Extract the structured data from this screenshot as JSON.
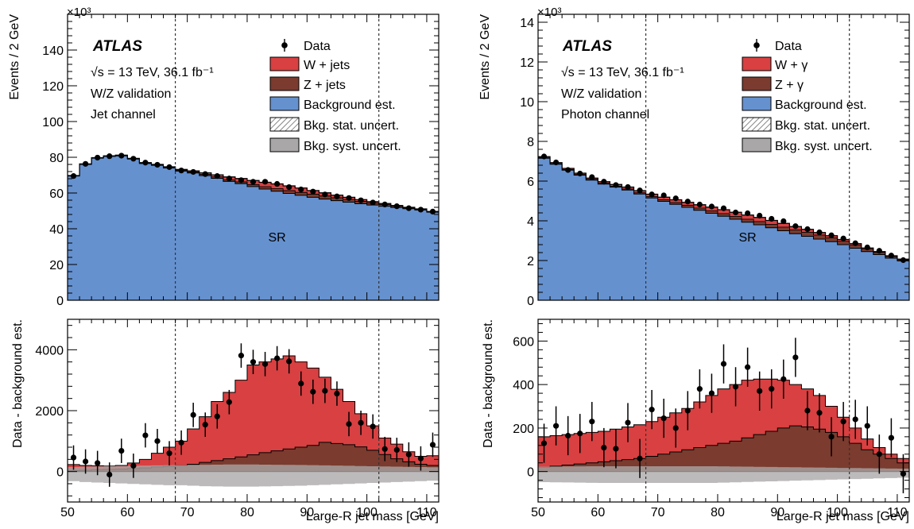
{
  "colors": {
    "data": "#000000",
    "wjets": "#d94041",
    "zjets": "#7b3b2e",
    "background": "#6591cf",
    "stat_uncert": "hatched",
    "syst_uncert": "#a9a7a7"
  },
  "panels": [
    {
      "atlas_label": "ATLAS",
      "info_lines": [
        "√s = 13 TeV,  36.1 fb⁻¹",
        "W/Z validation",
        "Jet channel"
      ],
      "exponent_label": "×10³",
      "legend": [
        "Data",
        "W + jets",
        "Z + jets",
        "Background est.",
        "Bkg. stat. uncert.",
        "Bkg. syst. uncert."
      ],
      "sr_label": "SR"
    },
    {
      "atlas_label": "ATLAS",
      "info_lines": [
        "√s = 13 TeV,  36.1 fb⁻¹",
        "W/Z validation",
        "Photon channel"
      ],
      "exponent_label": "×10³",
      "legend": [
        "Data",
        "W + γ",
        "Z + γ",
        "Background est.",
        "Bkg. stat. uncert.",
        "Bkg. syst. uncert."
      ],
      "sr_label": "SR"
    }
  ],
  "chart_data": [
    {
      "type": "area",
      "panel": "left-top",
      "ylabel": "Events / 2 GeV",
      "xlim": [
        50,
        112
      ],
      "ylim": [
        0,
        160
      ],
      "xticks": [
        "50",
        "60",
        "70",
        "80",
        "90",
        "100",
        "110"
      ],
      "yticks": [
        "0",
        "20",
        "40",
        "60",
        "80",
        "100",
        "120",
        "140"
      ],
      "signal_region": [
        68,
        102
      ],
      "bin_edges": [
        50,
        52,
        54,
        56,
        58,
        60,
        62,
        64,
        66,
        68,
        70,
        72,
        74,
        76,
        78,
        80,
        82,
        84,
        86,
        88,
        90,
        92,
        94,
        96,
        98,
        100,
        102,
        104,
        106,
        108,
        110,
        112
      ],
      "series": [
        {
          "name": "Background est.",
          "values": [
            69.5,
            76.0,
            79.5,
            80.5,
            80.8,
            79.0,
            76.5,
            75.5,
            74.0,
            72.3,
            71.2,
            69.7,
            68.2,
            66.5,
            65.2,
            63.6,
            62.2,
            61.0,
            59.8,
            58.7,
            57.6,
            56.6,
            55.7,
            54.9,
            54.0,
            53.3,
            52.6,
            51.9,
            51.2,
            50.5,
            49.3
          ]
        },
        {
          "name": "Z + jets",
          "values": [
            0.2,
            0.2,
            0.2,
            0.2,
            0.3,
            0.3,
            0.3,
            0.3,
            0.4,
            0.5,
            0.6,
            0.7,
            0.8,
            0.9,
            1.0,
            1.1,
            1.3,
            1.4,
            1.5,
            1.6,
            1.7,
            1.7,
            1.6,
            1.5,
            1.3,
            1.1,
            0.9,
            0.7,
            0.5,
            0.4,
            0.3
          ]
        },
        {
          "name": "W + jets",
          "values": [
            0.1,
            0.1,
            0.1,
            0.1,
            0.1,
            0.1,
            0.2,
            0.2,
            0.3,
            0.4,
            0.6,
            0.9,
            1.2,
            1.6,
            1.9,
            2.3,
            2.5,
            2.7,
            2.7,
            2.5,
            2.1,
            1.8,
            1.5,
            1.2,
            1.0,
            0.8,
            0.6,
            0.4,
            0.3,
            0.2,
            0.1
          ]
        }
      ],
      "data": {
        "x": [
          51,
          53,
          55,
          57,
          59,
          61,
          63,
          65,
          67,
          69,
          71,
          73,
          75,
          77,
          79,
          81,
          83,
          85,
          87,
          89,
          91,
          93,
          95,
          97,
          99,
          101,
          103,
          105,
          107,
          109,
          111
        ],
        "y": [
          69.5,
          76.3,
          79.8,
          80.6,
          80.9,
          79.2,
          77.0,
          75.8,
          74.5,
          72.6,
          71.8,
          70.6,
          69.5,
          68.1,
          67.2,
          66.3,
          66.3,
          65.1,
          63.3,
          62.0,
          60.8,
          59.2,
          58.1,
          57.2,
          55.9,
          54.7,
          53.6,
          52.6,
          51.5,
          50.7,
          49.6
        ]
      },
      "sr_label": "SR"
    },
    {
      "type": "area",
      "panel": "left-bottom",
      "ylabel": "Data - background est.",
      "xlabel": "Large-R jet mass [GeV]",
      "xlim": [
        50,
        112
      ],
      "ylim": [
        -1000,
        5000
      ],
      "xticks": [
        "50",
        "60",
        "70",
        "80",
        "90",
        "100",
        "110"
      ],
      "yticks": [
        "0",
        "2000",
        "4000"
      ],
      "bin_edges": [
        50,
        52,
        54,
        56,
        58,
        60,
        62,
        64,
        66,
        68,
        70,
        72,
        74,
        76,
        78,
        80,
        82,
        84,
        86,
        88,
        90,
        92,
        94,
        96,
        98,
        100,
        102,
        104,
        106,
        108,
        110,
        112
      ],
      "series": [
        {
          "name": "Z + jets",
          "values": [
            30,
            40,
            60,
            70,
            80,
            100,
            120,
            150,
            170,
            200,
            240,
            300,
            360,
            420,
            480,
            550,
            620,
            680,
            740,
            800,
            860,
            960,
            920,
            880,
            810,
            700,
            560,
            420,
            320,
            240,
            200
          ]
        },
        {
          "name": "W + jets (stacked total)",
          "values": [
            230,
            200,
            190,
            180,
            200,
            280,
            400,
            600,
            800,
            1000,
            1400,
            1800,
            2300,
            2600,
            3000,
            3500,
            3600,
            3700,
            3800,
            3600,
            3400,
            3100,
            2700,
            2300,
            1900,
            1500,
            1100,
            900,
            650,
            500,
            520
          ]
        },
        {
          "name": "Bkg. syst. uncert.",
          "values": [
            420,
            460,
            480,
            500,
            520,
            540,
            560,
            580,
            600,
            600,
            620,
            640,
            650,
            660,
            660,
            660,
            650,
            640,
            630,
            620,
            600,
            580,
            560,
            540,
            520,
            500,
            480,
            460,
            440,
            420,
            400
          ]
        }
      ],
      "data": {
        "x": [
          51,
          53,
          55,
          57,
          59,
          61,
          63,
          65,
          67,
          69,
          71,
          73,
          75,
          77,
          79,
          81,
          83,
          85,
          87,
          89,
          91,
          93,
          95,
          97,
          99,
          101,
          103,
          105,
          107,
          109,
          111
        ],
        "y": [
          460,
          330,
          280,
          -100,
          680,
          190,
          1190,
          1000,
          600,
          950,
          1860,
          1540,
          1810,
          2280,
          3810,
          3600,
          3530,
          3720,
          3620,
          2890,
          2620,
          2650,
          2560,
          1560,
          1600,
          1480,
          740,
          710,
          560,
          430,
          880
        ],
        "err": [
          400,
          400,
          400,
          400,
          400,
          400,
          400,
          400,
          400,
          400,
          400,
          400,
          400,
          400,
          400,
          400,
          400,
          400,
          400,
          400,
          400,
          400,
          400,
          400,
          400,
          400,
          400,
          400,
          400,
          400,
          400
        ]
      }
    },
    {
      "type": "area",
      "panel": "right-top",
      "ylabel": "Events / 2 GeV",
      "xlim": [
        50,
        112
      ],
      "ylim": [
        0,
        14.4
      ],
      "xticks": [
        "50",
        "60",
        "70",
        "80",
        "90",
        "100",
        "110"
      ],
      "yticks": [
        "0",
        "2",
        "4",
        "6",
        "8",
        "10",
        "12",
        "14"
      ],
      "signal_region": [
        68,
        102
      ],
      "bin_edges": [
        50,
        52,
        54,
        56,
        58,
        60,
        62,
        64,
        66,
        68,
        70,
        72,
        74,
        76,
        78,
        80,
        82,
        84,
        86,
        88,
        90,
        92,
        94,
        96,
        98,
        100,
        102,
        104,
        106,
        108,
        110,
        112
      ],
      "series": [
        {
          "name": "Background est.",
          "values": [
            7.15,
            6.85,
            6.55,
            6.3,
            6.05,
            5.85,
            5.7,
            5.55,
            5.35,
            5.15,
            4.98,
            4.83,
            4.68,
            4.53,
            4.38,
            4.23,
            4.08,
            3.93,
            3.8,
            3.65,
            3.5,
            3.35,
            3.22,
            3.08,
            2.95,
            2.8,
            2.62,
            2.45,
            2.3,
            2.12,
            1.98
          ]
        },
        {
          "name": "Z + γ",
          "values": [
            0.02,
            0.02,
            0.03,
            0.03,
            0.03,
            0.04,
            0.04,
            0.05,
            0.06,
            0.07,
            0.08,
            0.09,
            0.1,
            0.11,
            0.12,
            0.13,
            0.14,
            0.15,
            0.16,
            0.17,
            0.18,
            0.19,
            0.2,
            0.2,
            0.19,
            0.17,
            0.15,
            0.12,
            0.1,
            0.08,
            0.06
          ]
        },
        {
          "name": "W + γ",
          "values": [
            0.06,
            0.06,
            0.06,
            0.07,
            0.07,
            0.08,
            0.09,
            0.1,
            0.11,
            0.12,
            0.13,
            0.14,
            0.15,
            0.17,
            0.19,
            0.2,
            0.21,
            0.21,
            0.21,
            0.2,
            0.19,
            0.17,
            0.15,
            0.13,
            0.11,
            0.09,
            0.08,
            0.06,
            0.05,
            0.04,
            0.03
          ]
        }
      ],
      "data": {
        "x": [
          51,
          53,
          55,
          57,
          59,
          61,
          63,
          65,
          67,
          69,
          71,
          73,
          75,
          77,
          79,
          81,
          83,
          85,
          87,
          89,
          91,
          93,
          95,
          97,
          99,
          101,
          103,
          105,
          107,
          109,
          111
        ],
        "y": [
          7.24,
          6.94,
          6.56,
          6.38,
          6.2,
          5.97,
          5.8,
          5.7,
          5.53,
          5.33,
          5.28,
          5.13,
          4.97,
          4.82,
          4.72,
          4.63,
          4.42,
          4.38,
          4.26,
          4.1,
          3.98,
          3.73,
          3.58,
          3.42,
          3.27,
          3.11,
          2.87,
          2.66,
          2.49,
          2.25,
          2.02
        ]
      },
      "sr_label": "SR"
    },
    {
      "type": "area",
      "panel": "right-bottom",
      "ylabel": "Data - background est.",
      "xlabel": "Large-R jet mass [GeV]",
      "xlim": [
        50,
        112
      ],
      "ylim": [
        -140,
        700
      ],
      "xticks": [
        "50",
        "60",
        "70",
        "80",
        "90",
        "100",
        "110"
      ],
      "yticks": [
        "0",
        "200",
        "400",
        "600"
      ],
      "bin_edges": [
        50,
        52,
        54,
        56,
        58,
        60,
        62,
        64,
        66,
        68,
        70,
        72,
        74,
        76,
        78,
        80,
        82,
        84,
        86,
        88,
        90,
        92,
        94,
        96,
        98,
        100,
        102,
        104,
        106,
        108,
        110,
        112
      ],
      "series": [
        {
          "name": "Z + γ",
          "values": [
            20,
            25,
            30,
            35,
            40,
            45,
            50,
            55,
            60,
            70,
            80,
            90,
            100,
            110,
            120,
            130,
            140,
            155,
            170,
            185,
            200,
            210,
            205,
            195,
            180,
            160,
            130,
            100,
            80,
            60,
            40
          ]
        },
        {
          "name": "W + γ (stacked total)",
          "values": [
            160,
            165,
            170,
            175,
            180,
            185,
            195,
            205,
            215,
            230,
            250,
            270,
            290,
            320,
            350,
            380,
            400,
            420,
            425,
            425,
            420,
            400,
            380,
            350,
            300,
            250,
            200,
            150,
            110,
            80,
            60
          ]
        },
        {
          "name": "Bkg. syst. uncert.",
          "values": [
            65,
            66,
            67,
            68,
            69,
            70,
            70,
            70,
            70,
            70,
            70,
            70,
            70,
            70,
            70,
            68,
            66,
            64,
            62,
            60,
            58,
            56,
            54,
            52,
            50,
            48,
            46,
            44,
            42,
            40,
            38
          ]
        }
      ],
      "data": {
        "x": [
          51,
          53,
          55,
          57,
          59,
          61,
          63,
          65,
          67,
          69,
          71,
          73,
          75,
          77,
          79,
          81,
          83,
          85,
          87,
          89,
          91,
          93,
          95,
          97,
          99,
          101,
          103,
          105,
          107,
          109,
          111
        ],
        "y": [
          130,
          210,
          165,
          175,
          230,
          110,
          105,
          225,
          60,
          285,
          245,
          200,
          280,
          380,
          360,
          495,
          390,
          480,
          370,
          380,
          425,
          525,
          280,
          270,
          160,
          230,
          240,
          210,
          80,
          155,
          -10
        ],
        "err": [
          90,
          90,
          90,
          90,
          90,
          90,
          90,
          90,
          90,
          90,
          90,
          90,
          90,
          90,
          90,
          90,
          90,
          90,
          90,
          90,
          90,
          90,
          90,
          90,
          90,
          90,
          90,
          90,
          90,
          90,
          90
        ]
      }
    }
  ]
}
